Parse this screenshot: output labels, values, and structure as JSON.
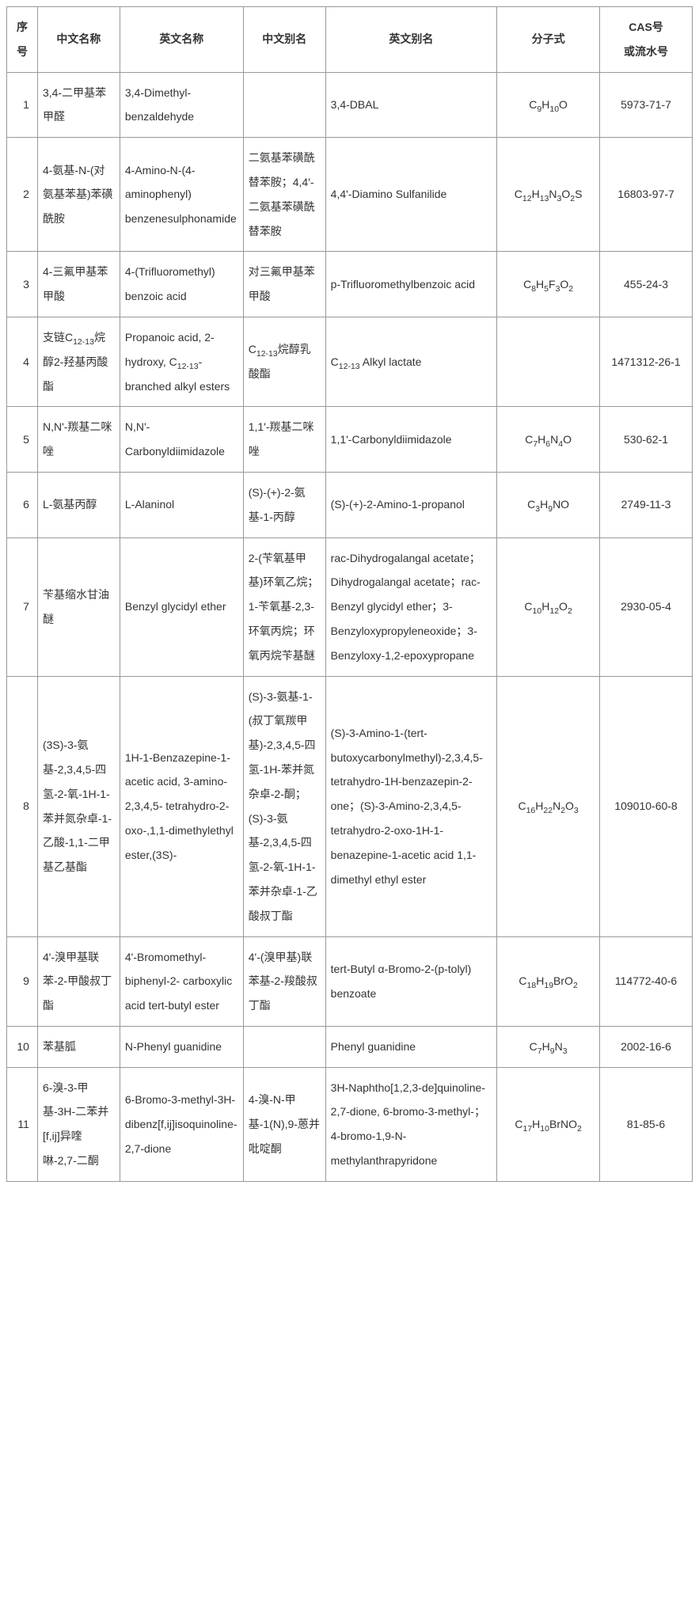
{
  "table": {
    "columns": [
      "序号",
      "中文名称",
      "英文名称",
      "中文别名",
      "英文别名",
      "分子式",
      "CAS号\n或流水号"
    ],
    "rows": [
      {
        "idx": "1",
        "cn": "3,4-二甲基苯甲醛",
        "en": "3,4-Dimethyl-benzaldehyde",
        "cna": "",
        "ena": "3,4-DBAL",
        "mf_html": "C<sub>9</sub>H<sub>10</sub>O",
        "cas": "5973-71-7"
      },
      {
        "idx": "2",
        "cn": "4-氨基-N-(对氨基苯基)苯磺酰胺",
        "en": "4-Amino-N-(4-aminophenyl) benzenesulphonamide",
        "cna": "二氨基苯磺酰替苯胺；4,4′-二氨基苯磺酰替苯胺",
        "ena": "4,4'-Diamino Sulfanilide",
        "mf_html": "C<sub>12</sub>H<sub>13</sub>N<sub>3</sub>O<sub>2</sub>S",
        "cas": "16803-97-7"
      },
      {
        "idx": "3",
        "cn": "4-三氟甲基苯甲酸",
        "en": "4-(Trifluoromethyl) benzoic acid",
        "cna": "对三氟甲基苯甲酸",
        "ena": "p-Trifluoromethylbenzoic acid",
        "mf_html": "C<sub>8</sub>H<sub>5</sub>F<sub>3</sub>O<sub>2</sub>",
        "cas": "455-24-3"
      },
      {
        "idx": "4",
        "cn_html": "支链C<sub>12-13</sub>烷醇2-羟基丙酸酯",
        "en_html": "Propanoic acid, 2-hydroxy, C<sub>12-13</sub>-branched alkyl esters",
        "cna_html": "C<sub>12-13</sub>烷醇乳酸酯",
        "ena_html": "C<sub>12-13</sub> Alkyl lactate",
        "mf_html": "",
        "cas": "1471312-26-1"
      },
      {
        "idx": "5",
        "cn": "N,N'-羰基二咪唑",
        "en": "N,N'-Carbonyldiimidazole",
        "cna": "1,1'-羰基二咪唑",
        "ena": "1,1'-Carbonyldiimidazole",
        "mf_html": "C<sub>7</sub>H<sub>6</sub>N<sub>4</sub>O",
        "cas": "530-62-1"
      },
      {
        "idx": "6",
        "cn": "L-氨基丙醇",
        "en": "L-Alaninol",
        "cna": "(S)-(+)-2-氨基-1-丙醇",
        "ena": "(S)-(+)-2-Amino-1-propanol",
        "mf_html": "C<sub>3</sub>H<sub>9</sub>NO",
        "cas": "2749-11-3"
      },
      {
        "idx": "7",
        "cn": "苄基缩水甘油醚",
        "en": "Benzyl glycidyl ether",
        "cna": "2-(苄氧基甲基)环氧乙烷；1-苄氧基-2,3-环氧丙烷；环氧丙烷苄基醚",
        "ena": "rac-Dihydrogalangal acetate；Dihydrogalangal acetate；rac-Benzyl glycidyl ether；3-Benzyloxypropyleneoxide；3-Benzyloxy-1,2-epoxypropane",
        "mf_html": "C<sub>10</sub>H<sub>12</sub>O<sub>2</sub>",
        "cas": "2930-05-4"
      },
      {
        "idx": "8",
        "cn": "(3S)-3-氨基-2,3,4,5-四氢-2-氧-1H-1-苯并氮杂卓-1-乙酸-1,1-二甲基乙基酯",
        "en": "1H-1-Benzazepine-1-acetic acid, 3-amino-2,3,4,5- tetrahydro-2-oxo-,1,1-dimethylethyl ester,(3S)-",
        "cna": "(S)-3-氨基-1-(叔丁氧羰甲基)-2,3,4,5-四氢-1H-苯并氮杂卓-2-酮；(S)-3-氨基-2,3,4,5-四氢-2-氧-1H-1-苯并杂卓-1-乙酸叔丁酯",
        "ena": "(S)-3-Amino-1-(tert-butoxycarbonylmethyl)-2,3,4,5- tetrahydro-1H-benzazepin-2-one；(S)-3-Amino-2,3,4,5-tetrahydro-2-oxo-1H-1-benazepine-1-acetic acid 1,1-dimethyl ethyl ester",
        "mf_html": "C<sub>16</sub>H<sub>22</sub>N<sub>2</sub>O<sub>3</sub>",
        "cas": "109010-60-8"
      },
      {
        "idx": "9",
        "cn": "4'-溴甲基联苯-2-甲酸叔丁酯",
        "en": "4'-Bromomethyl-biphenyl-2- carboxylic acid tert-butyl ester",
        "cna": "4'-(溴甲基)联苯基-2-羧酸叔丁酯",
        "ena": "tert-Butyl α-Bromo-2-(p-tolyl) benzoate",
        "mf_html": "C<sub>18</sub>H<sub>19</sub>BrO<sub>2</sub>",
        "cas": "114772-40-6"
      },
      {
        "idx": "10",
        "cn": "苯基胍",
        "en": "N-Phenyl guanidine",
        "cna": "",
        "ena": "Phenyl guanidine",
        "mf_html": "C<sub>7</sub>H<sub>9</sub>N<sub>3</sub>",
        "cas": "2002-16-6"
      },
      {
        "idx": "11",
        "cn": "6-溴-3-甲基-3H-二苯并[f,ij]异喹啉-2,7-二酮",
        "en": "6-Bromo-3-methyl-3H-dibenz[f,ij]isoquinoline-2,7-dione",
        "cna": "4-溴-N-甲基-1(N),9-蒽并吡啶酮",
        "ena": "3H-Naphtho[1,2,3-de]quinoline- 2,7-dione, 6-bromo-3-methyl-；4-bromo-1,9-N-methylanthrapyridone",
        "mf_html": "C<sub>17</sub>H<sub>10</sub>BrNO<sub>2</sub>",
        "cas": "81-85-6"
      }
    ]
  }
}
